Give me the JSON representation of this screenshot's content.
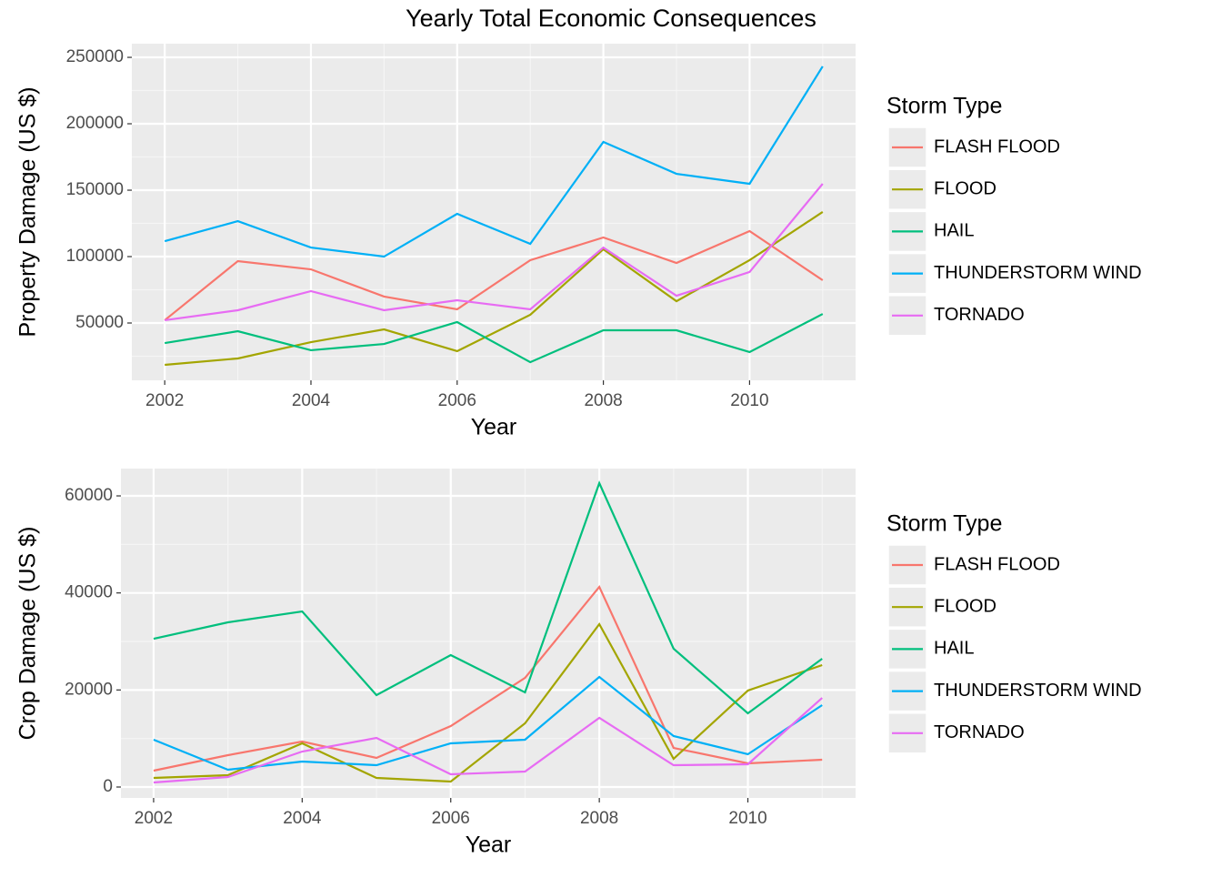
{
  "chart_data": [
    {
      "type": "line",
      "title": "Yearly Total Economic Consequences",
      "x_label": "Year",
      "y_label": "Property Damage (US $)",
      "legend_title": "Storm Type",
      "x": [
        2002,
        2003,
        2004,
        2005,
        2006,
        2007,
        2008,
        2009,
        2010,
        2011
      ],
      "series": [
        {
          "name": "FLASH FLOOD",
          "color": "#F8766D",
          "values": [
            52100,
            96600,
            90400,
            69900,
            60300,
            97300,
            114400,
            95200,
            119200,
            82200
          ]
        },
        {
          "name": "FLOOD",
          "color": "#A3A500",
          "values": [
            18500,
            23300,
            35600,
            45200,
            28800,
            56200,
            105500,
            66400,
            97300,
            133600
          ]
        },
        {
          "name": "HAIL",
          "color": "#00BF7D",
          "values": [
            34900,
            43800,
            29500,
            34200,
            50700,
            20500,
            44500,
            44500,
            28100,
            56800
          ]
        },
        {
          "name": "THUNDERSTORM WIND",
          "color": "#00B0F6",
          "values": [
            111600,
            126700,
            106800,
            100000,
            132200,
            109600,
            186300,
            162300,
            154800,
            243200
          ]
        },
        {
          "name": "TORNADO",
          "color": "#E76BF3",
          "values": [
            52100,
            59600,
            74000,
            59600,
            67100,
            60300,
            106800,
            70500,
            88400,
            154800
          ]
        }
      ],
      "xlim": [
        2001.55,
        2011.45
      ],
      "ylim": [
        6850,
        260300
      ],
      "xticks": [
        2002,
        2004,
        2006,
        2008,
        2010
      ],
      "yticks": [
        50000,
        100000,
        150000,
        200000,
        250000
      ],
      "grid": true
    },
    {
      "type": "line",
      "x_label": "Year",
      "y_label": "Crop Damage (US $)",
      "legend_title": "Storm Type",
      "x": [
        2002,
        2003,
        2004,
        2005,
        2006,
        2007,
        2008,
        2009,
        2010,
        2011
      ],
      "series": [
        {
          "name": "FLASH FLOOD",
          "color": "#F8766D",
          "values": [
            3375,
            6560,
            9375,
            6000,
            12560,
            22500,
            41250,
            8060,
            4875,
            5625
          ]
        },
        {
          "name": "FLOOD",
          "color": "#A3A500",
          "values": [
            1875,
            2440,
            9000,
            1875,
            1125,
            13125,
            33560,
            5810,
            19875,
            25125
          ]
        },
        {
          "name": "HAIL",
          "color": "#00BF7D",
          "values": [
            30560,
            33940,
            36190,
            18940,
            27190,
            19500,
            62630,
            28500,
            15190,
            26440
          ]
        },
        {
          "name": "THUNDERSTORM WIND",
          "color": "#00B0F6",
          "values": [
            9750,
            3560,
            5250,
            4500,
            9000,
            9750,
            22690,
            10500,
            6750,
            16875
          ]
        },
        {
          "name": "TORNADO",
          "color": "#E76BF3",
          "values": [
            940,
            2060,
            7310,
            10125,
            2625,
            3190,
            14250,
            4500,
            4690,
            18375
          ]
        }
      ],
      "xlim": [
        2001.56,
        2011.45
      ],
      "ylim": [
        -2250,
        65630
      ],
      "xticks": [
        2002,
        2004,
        2006,
        2008,
        2010
      ],
      "yticks": [
        0,
        20000,
        40000,
        60000
      ],
      "grid": true
    }
  ]
}
